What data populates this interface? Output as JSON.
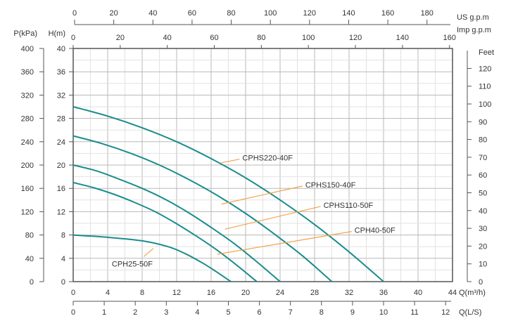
{
  "chart_data": {
    "type": "line",
    "title": "",
    "xlabel": "Q(m³/h)",
    "ylabel": "H(m)",
    "xlim": [
      0,
      44
    ],
    "ylim": [
      0,
      40
    ],
    "grid": true,
    "x_ticks": [
      0,
      4,
      8,
      12,
      16,
      20,
      24,
      28,
      32,
      36,
      40,
      44
    ],
    "y_ticks": [
      0,
      4,
      8,
      12,
      16,
      20,
      24,
      28,
      32,
      36,
      40
    ],
    "secondary_axes": {
      "pressure": {
        "label": "P(kPa)",
        "ticks": [
          0,
          40,
          80,
          120,
          160,
          200,
          240,
          280,
          320,
          360,
          400
        ]
      },
      "feet": {
        "label": "Feet",
        "ticks": [
          0,
          10,
          20,
          30,
          40,
          50,
          60,
          70,
          80,
          90,
          100,
          110,
          120
        ]
      },
      "imp_gpm": {
        "label": "Imp  g.p.m",
        "ticks": [
          0,
          20,
          40,
          60,
          80,
          100,
          120,
          140,
          160
        ]
      },
      "us_gpm": {
        "label": "US  g.p.m",
        "ticks": [
          0,
          20,
          40,
          60,
          80,
          100,
          120,
          140,
          160,
          180
        ]
      },
      "ls": {
        "label": "Q(L/S)",
        "ticks": [
          0,
          1,
          2,
          3,
          4,
          5,
          6,
          7,
          8,
          9,
          10,
          11,
          12
        ]
      }
    },
    "series": [
      {
        "name": "CPHS220-40F",
        "x": [
          0,
          4,
          8,
          12,
          16,
          20,
          24,
          28,
          32,
          36
        ],
        "y": [
          30,
          28.4,
          26.4,
          24,
          21.1,
          17.8,
          14,
          9.8,
          5.1,
          0
        ],
        "label_at": [
          19.3,
          21
        ],
        "leader_from": [
          17.2,
          20.4
        ]
      },
      {
        "name": "CPHS150-40F",
        "x": [
          0,
          3.3,
          6.7,
          10,
          13.3,
          16.7,
          20,
          23.3,
          26.7,
          30
        ],
        "y": [
          25,
          23.7,
          22,
          20,
          17.6,
          14.8,
          11.7,
          8.2,
          4.3,
          0
        ],
        "label_at": [
          26.6,
          16.4
        ],
        "leader_from": [
          17.2,
          13.3
        ]
      },
      {
        "name": "CPHS110-50F",
        "x": [
          0,
          2.7,
          5.3,
          8,
          10.7,
          13.3,
          16,
          18.7,
          21.3,
          24
        ],
        "y": [
          20,
          19,
          17.6,
          16,
          14.1,
          11.9,
          9.3,
          6.5,
          3.4,
          0
        ],
        "label_at": [
          28.7,
          12.9
        ],
        "leader_from": [
          17.6,
          9
        ]
      },
      {
        "name": "CPH40-50F",
        "x": [
          0,
          2.4,
          4.7,
          7.1,
          9.5,
          11.8,
          14.2,
          16.6,
          18.9,
          21.3
        ],
        "y": [
          17,
          16.1,
          15,
          13.6,
          12,
          10.1,
          7.9,
          5.5,
          2.9,
          0
        ],
        "label_at": [
          32.3,
          8.6
        ],
        "leader_from": [
          16.7,
          4.7
        ]
      },
      {
        "name": "CPH25-50F",
        "x": [
          0,
          4,
          8,
          11,
          13,
          15,
          16.5,
          18.3
        ],
        "y": [
          8,
          7.6,
          7,
          6,
          4.8,
          3.2,
          1.8,
          0
        ],
        "label_at": [
          9.3,
          5.7
        ],
        "leader_from": [
          8.2,
          4.3
        ]
      }
    ],
    "colors": {
      "curve": "#1b8c8c",
      "leader": "#f2a24a",
      "axis": "#555555",
      "grid_major": "#b8b8b8",
      "grid_minor": "#e2e2e2"
    }
  }
}
